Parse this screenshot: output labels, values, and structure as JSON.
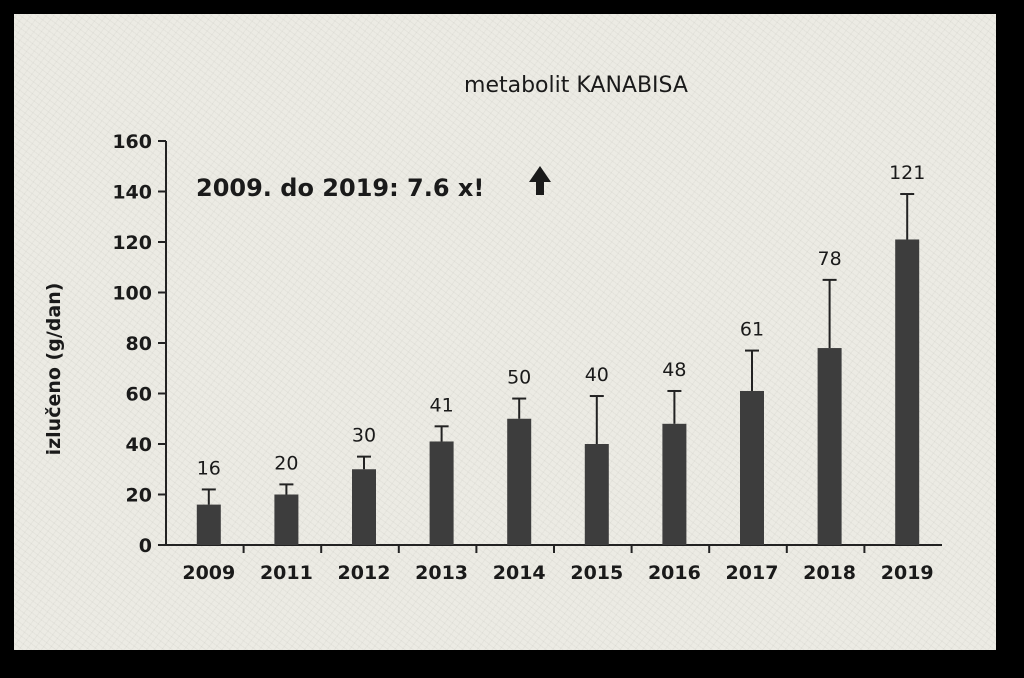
{
  "chart_data": {
    "type": "bar",
    "title": "metabolit KANABISA",
    "ylabel": "izlučeno (g/dan)",
    "xlabel": "",
    "ylim": [
      0,
      160
    ],
    "yticks": [
      0,
      20,
      40,
      60,
      80,
      100,
      120,
      140,
      160
    ],
    "annotation": "2009. do 2019: 7.6 x!",
    "annotation_icon": "up-arrow-icon",
    "categories": [
      "2009",
      "2011",
      "2012",
      "2013",
      "2014",
      "2015",
      "2016",
      "2017",
      "2018",
      "2019"
    ],
    "values": [
      16,
      20,
      30,
      41,
      50,
      40,
      48,
      61,
      78,
      121
    ],
    "error_bar_tops": [
      22,
      24,
      35,
      47,
      58,
      59,
      61,
      77,
      105,
      139
    ],
    "data_labels": [
      "16",
      "20",
      "30",
      "41",
      "50",
      "40",
      "48",
      "61",
      "78",
      "121"
    ],
    "bar_color": "#3d3d3d",
    "grid": false
  }
}
